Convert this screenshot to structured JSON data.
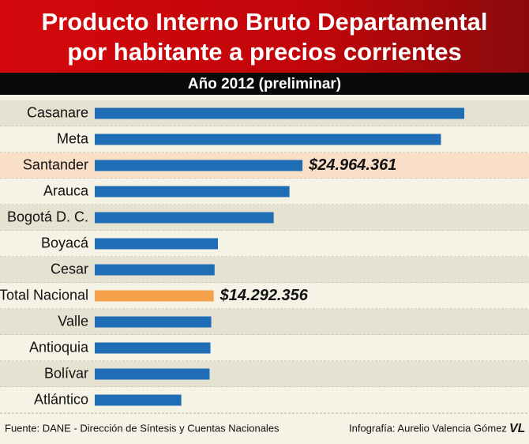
{
  "chart_data": {
    "type": "bar",
    "orientation": "horizontal",
    "title": "Producto Interno Bruto Departamental por habitante a precios corrientes",
    "subtitle": "Año 2012 (preliminar)",
    "categories": [
      "Casanare",
      "Meta",
      "Santander",
      "Arauca",
      "Bogotá D. C.",
      "Boyacá",
      "Cesar",
      "Total Nacional",
      "Valle",
      "Antioquia",
      "Bolívar",
      "Atlántico"
    ],
    "values": [
      44400000,
      41600000,
      24964361,
      23400000,
      21500000,
      14800000,
      14400000,
      14292356,
      14000000,
      13900000,
      13800000,
      10400000
    ],
    "value_labels": [
      null,
      null,
      "$24.964.361",
      null,
      null,
      null,
      null,
      "$14.292.356",
      null,
      null,
      null,
      null
    ],
    "colors": [
      "#1f6db5",
      "#1f6db5",
      "#1f6db5",
      "#1f6db5",
      "#1f6db5",
      "#1f6db5",
      "#1f6db5",
      "#f5a04a",
      "#1f6db5",
      "#1f6db5",
      "#1f6db5",
      "#1f6db5"
    ],
    "row_colors": [
      "#e6e2d2",
      "#f5f2e6",
      "#fadfc8",
      "#f5f2e6",
      "#e6e2d2",
      "#f5f2e6",
      "#e6e2d2",
      "#f5f2e6",
      "#e6e2d2",
      "#f5f2e6",
      "#e6e2d2",
      "#f5f2e6"
    ],
    "source": "Fuente: DANE - Dirección de Síntesis y Cuentas Nacionales",
    "credit": "Infografía: Aurelio Valencia Gómez",
    "logo": "VL"
  }
}
